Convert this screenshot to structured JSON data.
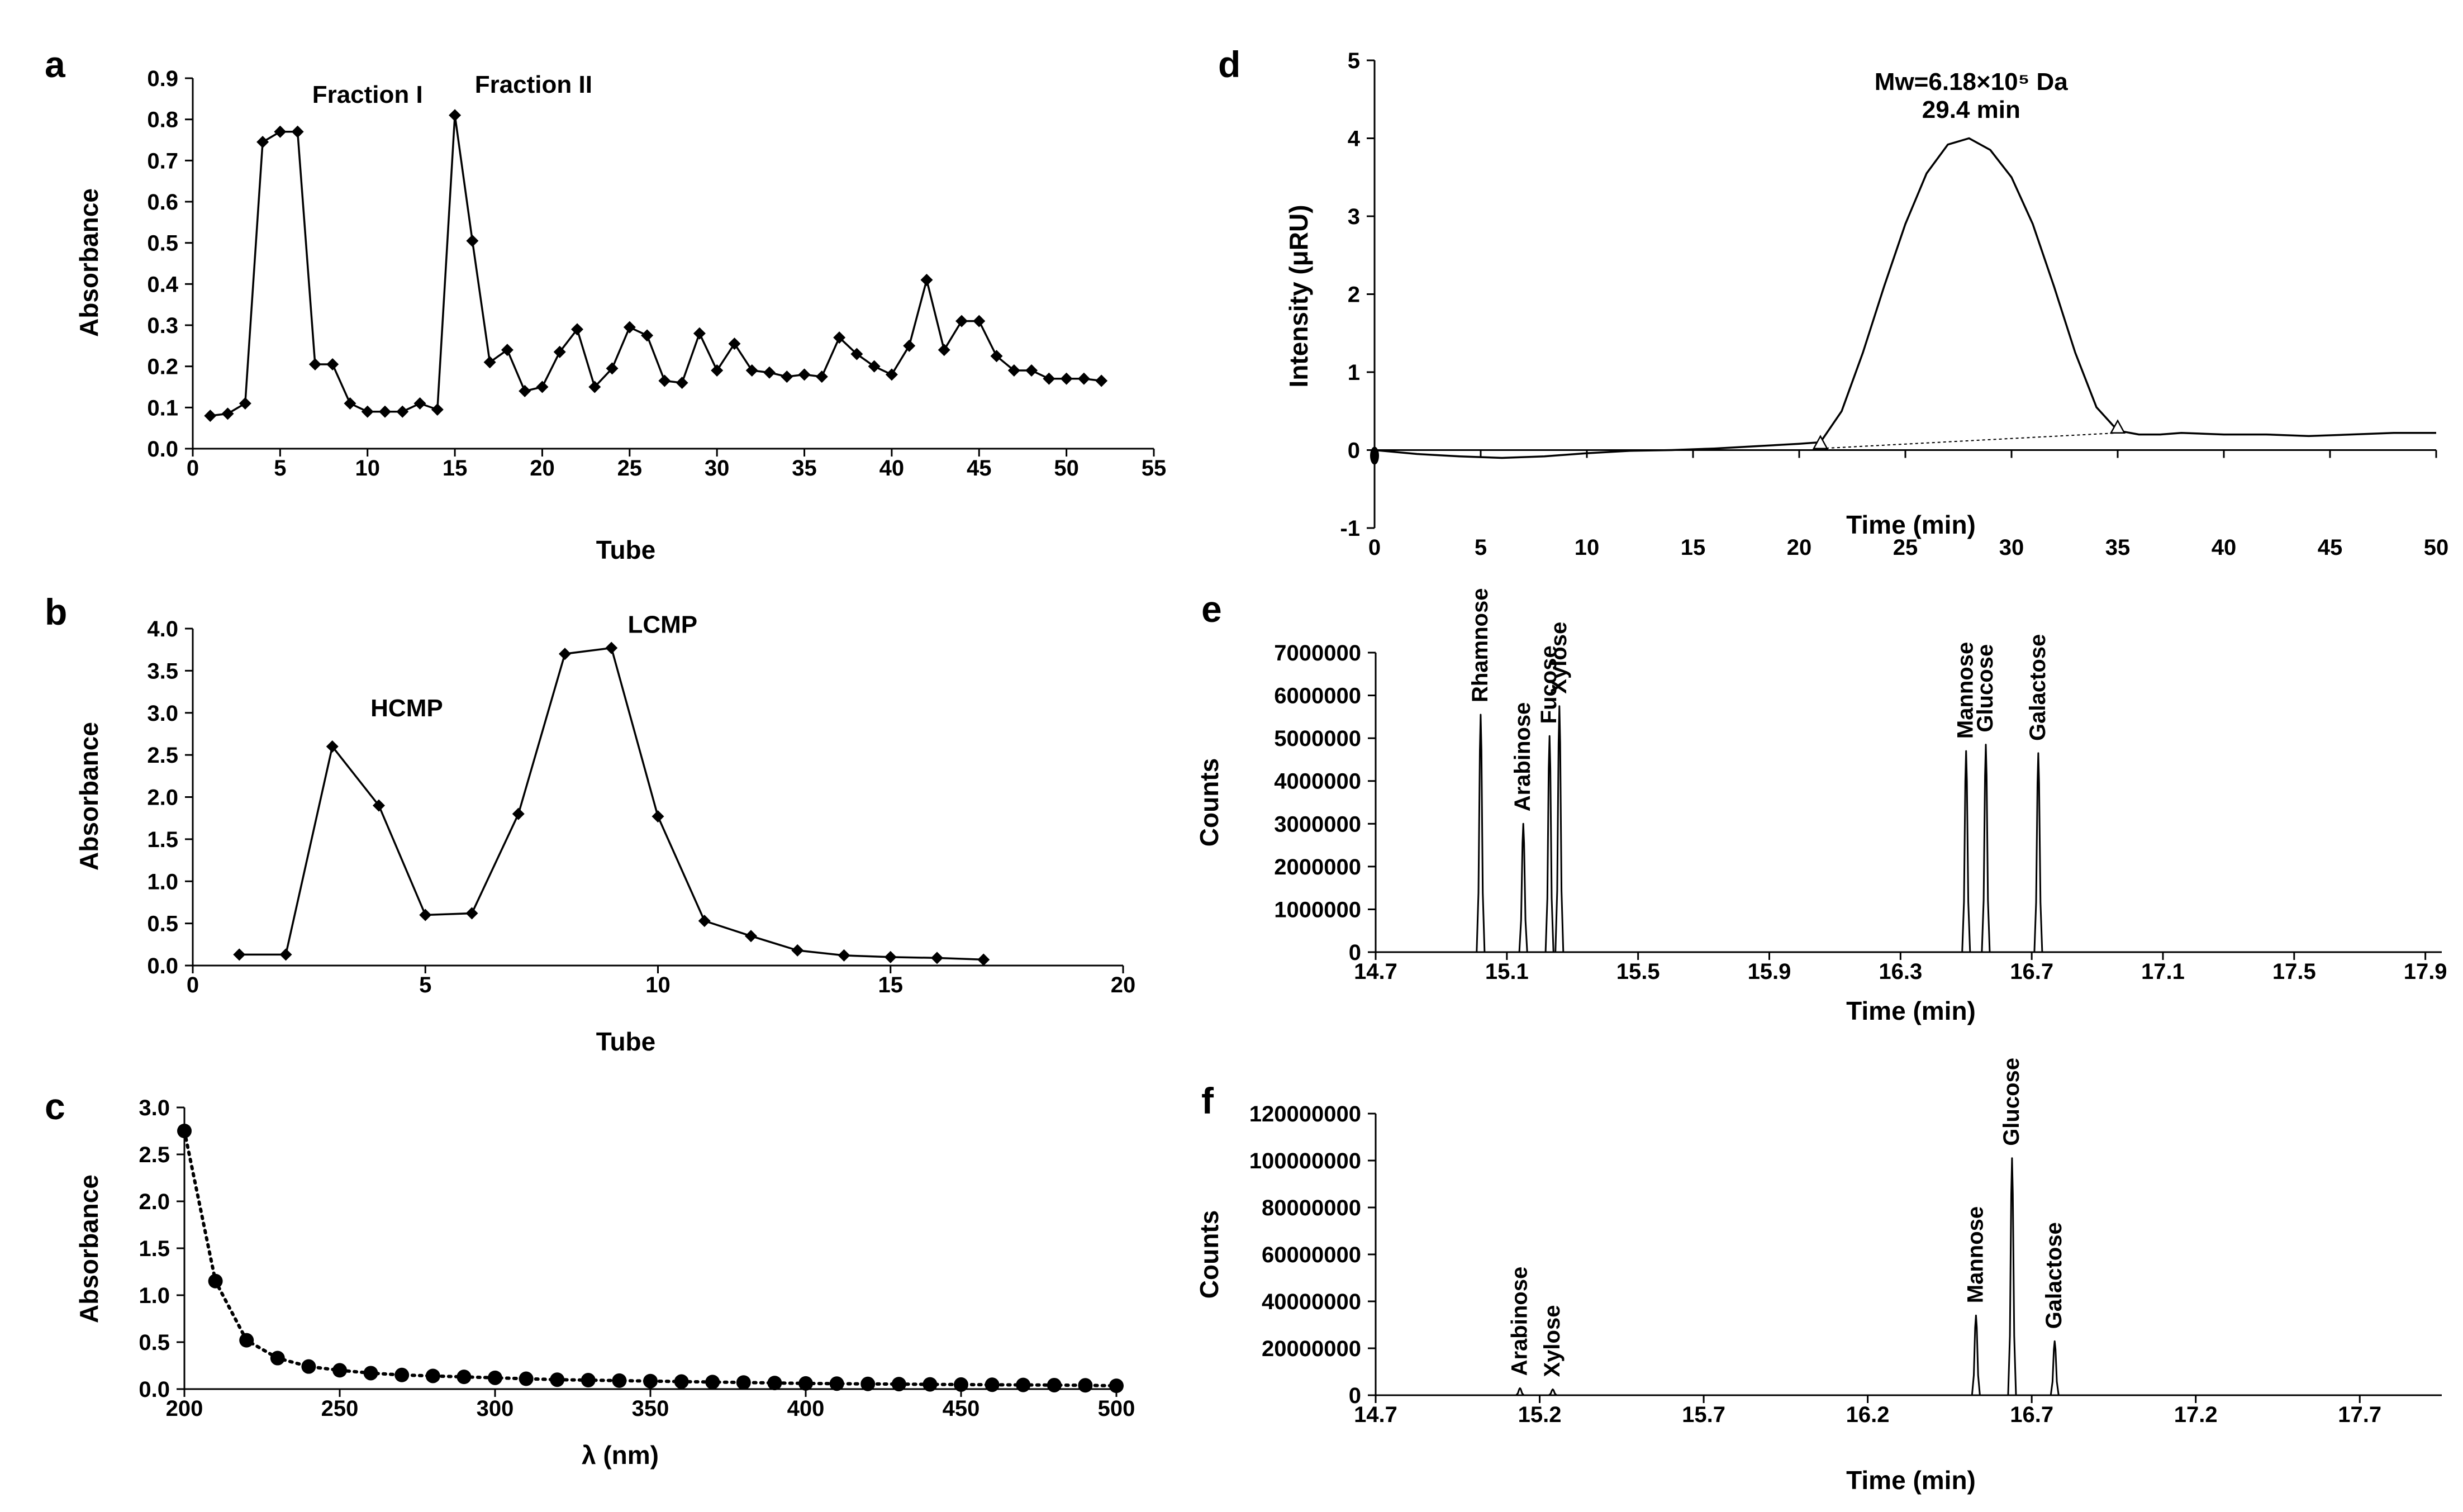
{
  "chart_data": [
    {
      "id": "a",
      "panel_label": "a",
      "type": "line",
      "xlabel": "Tube",
      "ylabel": "Absorbance",
      "xlim": [
        0,
        55
      ],
      "ylim": [
        0,
        0.9
      ],
      "xticks": [
        0,
        5,
        10,
        15,
        20,
        25,
        30,
        35,
        40,
        45,
        50,
        55
      ],
      "yticks": [
        "0.0",
        "0.1",
        "0.2",
        "0.3",
        "0.4",
        "0.5",
        "0.6",
        "0.7",
        "0.8",
        "0.9"
      ],
      "marker": "diamond",
      "x": [
        1,
        2,
        3,
        4,
        5,
        6,
        7,
        8,
        9,
        10,
        11,
        12,
        13,
        14,
        15,
        16,
        17,
        18,
        19,
        20,
        21,
        22,
        23,
        24,
        25,
        26,
        27,
        28,
        29,
        30,
        31,
        32,
        33,
        34,
        35,
        36,
        37,
        38,
        39,
        40,
        41,
        42,
        43,
        44,
        45,
        46,
        47,
        48,
        49,
        50,
        51,
        52
      ],
      "y": [
        0.08,
        0.085,
        0.11,
        0.745,
        0.77,
        0.77,
        0.205,
        0.205,
        0.11,
        0.09,
        0.09,
        0.09,
        0.11,
        0.095,
        0.81,
        0.505,
        0.21,
        0.24,
        0.14,
        0.15,
        0.235,
        0.29,
        0.15,
        0.195,
        0.295,
        0.275,
        0.165,
        0.16,
        0.28,
        0.19,
        0.255,
        0.19,
        0.185,
        0.175,
        0.18,
        0.175,
        0.27,
        0.23,
        0.2,
        0.18,
        0.25,
        0.41,
        0.24,
        0.31,
        0.31,
        0.225,
        0.19,
        0.19,
        0.17,
        0.17,
        0.17,
        0.165
      ],
      "annotations": [
        {
          "text": "Fraction I",
          "x": 10,
          "y": 0.84
        },
        {
          "text": "Fraction II",
          "x": 19.5,
          "y": 0.865
        }
      ]
    },
    {
      "id": "b",
      "panel_label": "b",
      "type": "line",
      "xlabel": "Tube",
      "ylabel": "Absorbance",
      "xlim": [
        0,
        20
      ],
      "ylim": [
        0,
        4.0
      ],
      "xticks": [
        0,
        5,
        10,
        15,
        20
      ],
      "yticks": [
        "0.0",
        "0.5",
        "1.0",
        "1.5",
        "2.0",
        "2.5",
        "3.0",
        "3.5",
        "4.0"
      ],
      "marker": "diamond",
      "x": [
        1,
        2,
        3,
        4,
        5,
        6,
        7,
        8,
        9,
        10,
        11,
        12,
        13,
        14,
        15,
        16,
        17
      ],
      "y": [
        0.13,
        0.13,
        2.6,
        1.9,
        0.6,
        0.62,
        1.8,
        3.7,
        3.77,
        1.77,
        0.53,
        0.35,
        0.18,
        0.12,
        0.1,
        0.09,
        0.07
      ],
      "annotations": [
        {
          "text": "HCMP",
          "x": 4.6,
          "y": 2.96
        },
        {
          "text": "LCMP",
          "x": 10.1,
          "y": 3.95
        }
      ]
    },
    {
      "id": "c",
      "panel_label": "c",
      "type": "line",
      "xlabel": "λ (nm)",
      "ylabel": "Absorbance",
      "xlim": [
        200,
        500
      ],
      "ylim": [
        0,
        3.0
      ],
      "xticks": [
        200,
        250,
        300,
        350,
        400,
        450,
        500
      ],
      "yticks": [
        "0.0",
        "0.5",
        "1.0",
        "1.5",
        "2.0",
        "2.5",
        "3.0"
      ],
      "marker": "circle",
      "line_style": "dotted",
      "x": [
        200,
        210,
        220,
        230,
        240,
        250,
        260,
        270,
        280,
        290,
        300,
        310,
        320,
        330,
        340,
        350,
        360,
        370,
        380,
        390,
        400,
        410,
        420,
        430,
        440,
        450,
        460,
        470,
        480,
        490,
        500
      ],
      "y": [
        2.75,
        1.15,
        0.52,
        0.33,
        0.24,
        0.2,
        0.17,
        0.15,
        0.14,
        0.13,
        0.12,
        0.11,
        0.1,
        0.095,
        0.09,
        0.085,
        0.08,
        0.075,
        0.07,
        0.065,
        0.06,
        0.058,
        0.055,
        0.053,
        0.05,
        0.048,
        0.046,
        0.044,
        0.042,
        0.04,
        0.035
      ]
    },
    {
      "id": "d",
      "panel_label": "d",
      "type": "line",
      "xlabel": "Time (min)",
      "ylabel": "Intensity (μRU)",
      "xlim": [
        0,
        50
      ],
      "ylim": [
        -1,
        5
      ],
      "xticks": [
        0,
        5,
        10,
        15,
        20,
        25,
        30,
        35,
        40,
        45,
        50
      ],
      "yticks": [
        "-1",
        "0",
        "1",
        "2",
        "3",
        "4",
        "5"
      ],
      "x": [
        0,
        2,
        4,
        6,
        8,
        10,
        12,
        14,
        16,
        18,
        20,
        21,
        22,
        23,
        24,
        25,
        26,
        27,
        28,
        29,
        30,
        31,
        32,
        33,
        34,
        35,
        36,
        37,
        38,
        40,
        42,
        44,
        46,
        48,
        50
      ],
      "y": [
        0.0,
        -0.05,
        -0.08,
        -0.1,
        -0.08,
        -0.04,
        -0.01,
        0.0,
        0.02,
        0.05,
        0.08,
        0.1,
        0.5,
        1.25,
        2.1,
        2.9,
        3.55,
        3.92,
        4.0,
        3.85,
        3.5,
        2.9,
        2.1,
        1.25,
        0.55,
        0.25,
        0.2,
        0.2,
        0.22,
        0.2,
        0.2,
        0.18,
        0.2,
        0.22,
        0.22
      ],
      "baseline": {
        "from": [
          21,
          0.02
        ],
        "to": [
          35,
          0.22
        ]
      },
      "baseline_markers": [
        21,
        35
      ],
      "annotations": [
        {
          "text": "Mw=6.18×10⁵ Da",
          "x": 28.1,
          "y": 4.62
        },
        {
          "text": "29.4 min",
          "x": 28.1,
          "y": 4.26
        }
      ]
    },
    {
      "id": "e",
      "panel_label": "e",
      "type": "line",
      "xlabel": "Time (min)",
      "ylabel": "Counts",
      "xlim": [
        14.7,
        17.95
      ],
      "ylim": [
        0,
        7000000
      ],
      "xticks": [
        "14.7",
        "15.1",
        "15.5",
        "15.9",
        "16.3",
        "16.7",
        "17.1",
        "17.5",
        "17.9"
      ],
      "yticks": [
        "0",
        "1000000",
        "2000000",
        "3000000",
        "4000000",
        "5000000",
        "6000000",
        "7000000"
      ],
      "peak_width": 0.012,
      "peaks": [
        {
          "name": "Rhamnose",
          "x": 15.02,
          "y": 5550000
        },
        {
          "name": "Arabinose",
          "x": 15.15,
          "y": 3000000
        },
        {
          "name": "Fucose",
          "x": 15.23,
          "y": 5050000
        },
        {
          "name": "Xylose",
          "x": 15.26,
          "y": 5750000
        },
        {
          "name": "Mannose",
          "x": 16.5,
          "y": 4700000
        },
        {
          "name": "Glucose",
          "x": 16.56,
          "y": 4850000
        },
        {
          "name": "Galactose",
          "x": 16.72,
          "y": 4650000
        }
      ]
    },
    {
      "id": "f",
      "panel_label": "f",
      "type": "line",
      "xlabel": "Time (min)",
      "ylabel": "Counts",
      "xlim": [
        14.7,
        17.95
      ],
      "ylim": [
        0,
        120000000
      ],
      "xticks": [
        "14.7",
        "15.2",
        "15.7",
        "16.2",
        "16.7",
        "17.2",
        "17.7"
      ],
      "yticks": [
        "0",
        "20000000",
        "40000000",
        "60000000",
        "80000000",
        "100000000",
        "120000000"
      ],
      "peak_width": 0.012,
      "peaks": [
        {
          "name": "Arabinose",
          "x": 15.14,
          "y": 3000000
        },
        {
          "name": "Xylose",
          "x": 15.24,
          "y": 2500000
        },
        {
          "name": "Mannose",
          "x": 16.53,
          "y": 34000000
        },
        {
          "name": "Glucose",
          "x": 16.64,
          "y": 101000000
        },
        {
          "name": "Galactose",
          "x": 16.77,
          "y": 23000000
        }
      ]
    }
  ]
}
